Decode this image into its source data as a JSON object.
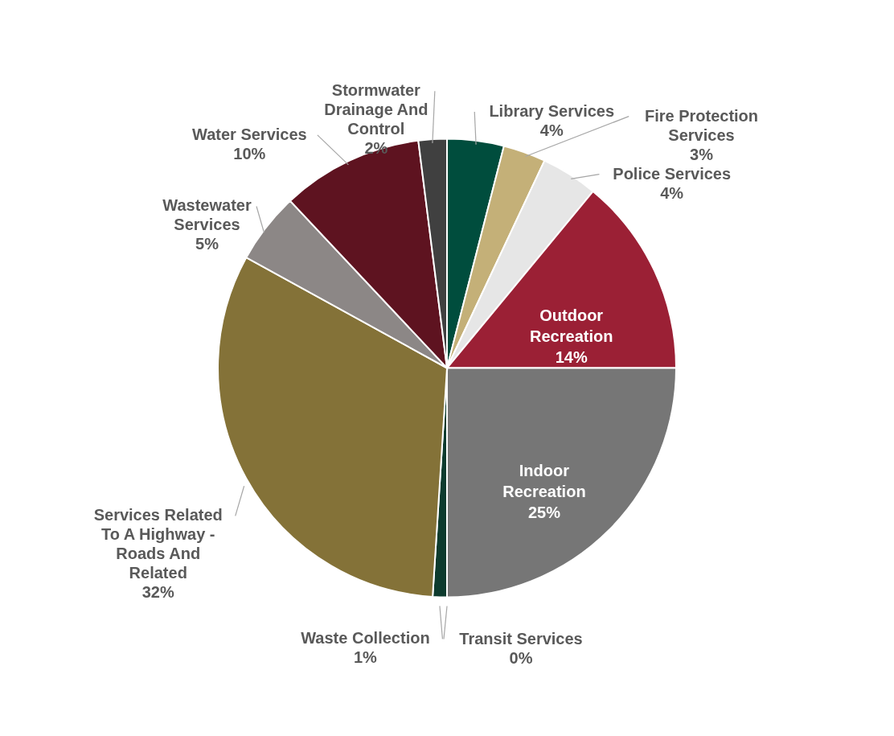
{
  "chart_data": {
    "type": "pie",
    "categories": [
      "Library Services",
      "Fire Protection Services",
      "Police Services",
      "Outdoor Recreation",
      "Indoor Recreation",
      "Transit Services",
      "Waste Collection",
      "Services Related To A Highway - Roads And Related",
      "Wastewater Services",
      "Water Services",
      "Stormwater Drainage And Control"
    ],
    "values": [
      4,
      3,
      4,
      14,
      25,
      0,
      1,
      32,
      5,
      10,
      2
    ],
    "value_labels": [
      "4%",
      "3%",
      "4%",
      "14%",
      "25%",
      "0%",
      "1%",
      "32%",
      "5%",
      "10%",
      "2%"
    ],
    "colors": [
      "#004d3d",
      "#c4b078",
      "#e6e6e6",
      "#9b2035",
      "#767676",
      "#d9d9d9",
      "#0d3b2e",
      "#847238",
      "#8c8786",
      "#5e1320",
      "#404040"
    ]
  }
}
